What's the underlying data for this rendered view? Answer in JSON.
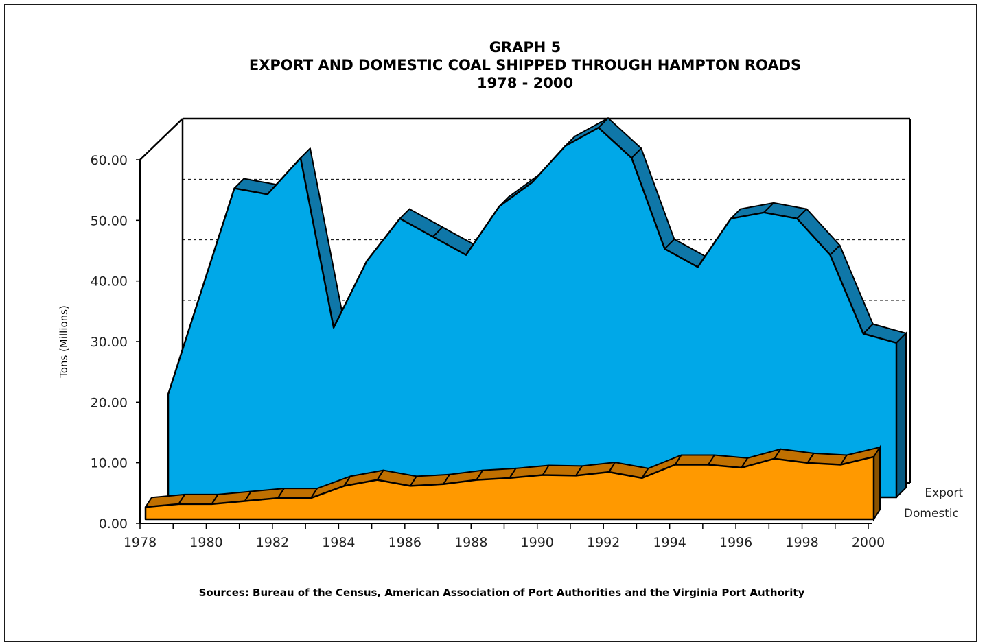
{
  "chart_data": {
    "type": "area",
    "title": "GRAPH 5",
    "subtitle": "EXPORT AND DOMESTIC COAL SHIPPED THROUGH HAMPTON ROADS",
    "period": "1978 - 2000",
    "ylabel": "Tons (Millions)",
    "xlabel": "",
    "ylim": [
      0,
      60
    ],
    "yticks": [
      "0.00",
      "10.00",
      "20.00",
      "30.00",
      "40.00",
      "50.00",
      "60.00"
    ],
    "xticks": [
      "1978",
      "1980",
      "1982",
      "1984",
      "1986",
      "1988",
      "1990",
      "1992",
      "1994",
      "1996",
      "1998",
      "2000"
    ],
    "grid": "dashed horizontal",
    "legend": "right",
    "x": [
      1978,
      1979,
      1980,
      1981,
      1982,
      1983,
      1984,
      1985,
      1986,
      1987,
      1988,
      1989,
      1990,
      1991,
      1992,
      1993,
      1994,
      1995,
      1996,
      1997,
      1998,
      1999,
      2000
    ],
    "series": [
      {
        "name": "Export",
        "color": "#00a8e8",
        "values": [
          17,
          34,
          51,
          50,
          56,
          28,
          39,
          46,
          43,
          40,
          48,
          52,
          58,
          61,
          56,
          41,
          38,
          46,
          47,
          46,
          40,
          27,
          25.5
        ]
      },
      {
        "name": "Domestic",
        "color": "#ff9900",
        "values": [
          2,
          2.5,
          2.5,
          3,
          3.5,
          3.5,
          5.5,
          6.5,
          5.5,
          5.8,
          6.5,
          6.8,
          7.3,
          7.2,
          7.8,
          6.8,
          9,
          9,
          8.5,
          10,
          9.3,
          9,
          10.3
        ]
      }
    ]
  },
  "source": "Sources: Bureau of the Census, American Association of Port Authorities and the Virginia Port Authority"
}
